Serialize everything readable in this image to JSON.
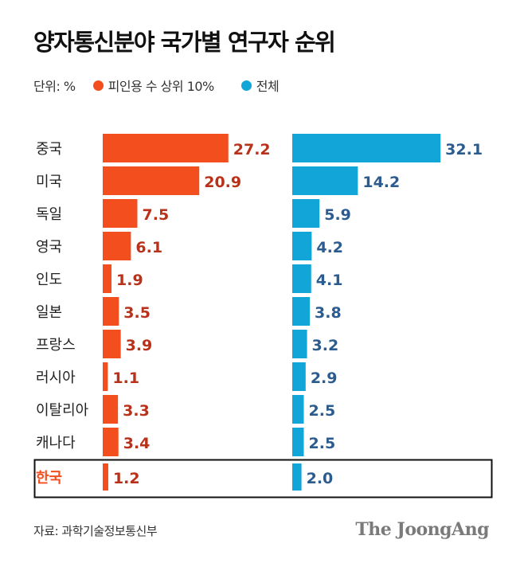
{
  "title": "양자통신분야 국가별 연구자 순위",
  "legend": {
    "unit": "단위: %",
    "series": [
      {
        "name": "피인용 수 상위 10%",
        "color": "#f24e1e"
      },
      {
        "name": "전체",
        "color": "#12a6d8"
      }
    ]
  },
  "source": "자료: 과학기술정보통신부",
  "brand": "The JoongAng",
  "chart_data": {
    "type": "bar",
    "orientation": "horizontal",
    "categories": [
      "중국",
      "미국",
      "독일",
      "영국",
      "인도",
      "일본",
      "프랑스",
      "러시아",
      "이탈리아",
      "캐나다",
      "한국"
    ],
    "highlight_category": "한국",
    "series": [
      {
        "name": "피인용 수 상위 10%",
        "values": [
          27.2,
          20.9,
          7.5,
          6.1,
          1.9,
          3.5,
          3.9,
          1.1,
          3.3,
          3.4,
          1.2
        ]
      },
      {
        "name": "전체",
        "values": [
          32.1,
          14.2,
          5.9,
          4.2,
          4.1,
          3.8,
          3.2,
          2.9,
          2.5,
          2.5,
          2.0
        ]
      }
    ],
    "colors": {
      "series1_bar": "#f24e1e",
      "series1_label": "#b8321b",
      "series2_bar": "#12a6d8",
      "series2_label": "#2c5c8f",
      "highlight_label": "#f24e1e"
    }
  }
}
